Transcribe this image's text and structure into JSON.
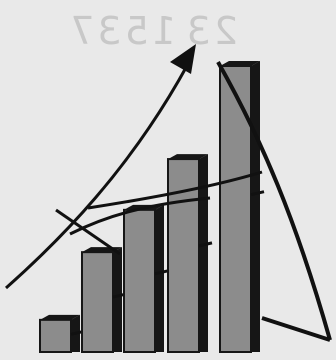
{
  "background_text": [
    "1537",
    "23"
  ],
  "colors": {
    "background": "#e9e9e9",
    "bar_face": "#8c8c8c",
    "bar_shadow": "#161616",
    "ink": "#111111",
    "faint_text": "#c8c8c8"
  },
  "chart_data": {
    "type": "bar",
    "title": "",
    "xlabel": "",
    "ylabel": "",
    "categories": [
      "",
      "",
      "",
      "",
      ""
    ],
    "values": [
      1.9,
      5.9,
      8.4,
      11.4,
      16.9
    ],
    "ylim": [
      0,
      18
    ],
    "grid": false,
    "legend": "none",
    "annotations": [
      "trend-arrow",
      "arc-curve"
    ]
  }
}
